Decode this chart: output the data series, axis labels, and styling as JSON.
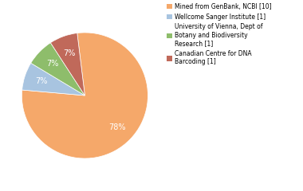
{
  "labels": [
    "Mined from GenBank, NCBI [10]",
    "Wellcome Sanger Institute [1]",
    "University of Vienna, Dept of\nBotany and Biodiversity\nResearch [1]",
    "Canadian Centre for DNA\nBarcoding [1]"
  ],
  "values": [
    76,
    7,
    7,
    7
  ],
  "colors": [
    "#F5A86A",
    "#A8C4E0",
    "#8EBD6B",
    "#C0695A"
  ],
  "pct_colors": [
    "white",
    "white",
    "white",
    "white"
  ],
  "startangle": 97,
  "background_color": "#ffffff"
}
